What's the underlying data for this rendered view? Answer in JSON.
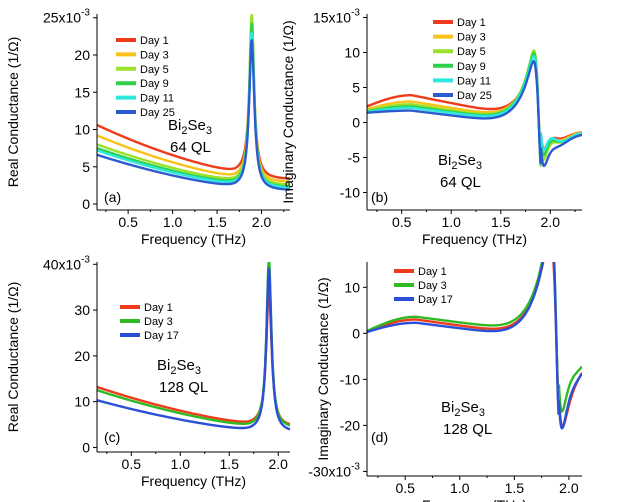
{
  "chart_data": [
    {
      "id": "a",
      "type": "line",
      "panel_label": "(a)",
      "xlabel": "Frequency (THz)",
      "ylabel": "Real Conductance (1/Ω)",
      "xlim": [
        0.15,
        2.32
      ],
      "ylim": [
        -0.8,
        25.5
      ],
      "multiplier": "x10",
      "multiplier_exp": "-3",
      "xticks": [
        "0.5",
        "1.0",
        "1.5",
        "2.0"
      ],
      "xtick_values": [
        0.5,
        1.0,
        1.5,
        2.0
      ],
      "ytick_labels": [
        "0",
        "5",
        "10",
        "15",
        "20",
        "25"
      ],
      "ytick_values": [
        0,
        5,
        10,
        15,
        20,
        25
      ],
      "top_ytick_uses_multiplier": true,
      "sample": "Bi",
      "sample_sub1": "2",
      "sample_mid": "Se",
      "sample_sub2": "3",
      "thickness": "64 QL",
      "model": {
        "kind": "real",
        "w0": 1.89
      },
      "series": [
        {
          "name": "Day 1",
          "color": "#ee3b1b",
          "base": 10.6,
          "mid": 4.2,
          "amp": 18.4,
          "gamma": 0.035,
          "drop": 0.9
        },
        {
          "name": "Day 3",
          "color": "#f8c21a",
          "base": 9.2,
          "mid": 3.5,
          "amp": 21.5,
          "gamma": 0.032,
          "drop": 0.6
        },
        {
          "name": "Day 5",
          "color": "#9ae22a",
          "base": 8.0,
          "mid": 3.0,
          "amp": 22.5,
          "gamma": 0.032,
          "drop": 0.5
        },
        {
          "name": "Day 9",
          "color": "#2fd14a",
          "base": 7.5,
          "mid": 2.7,
          "amp": 21.5,
          "gamma": 0.033,
          "drop": 0.5
        },
        {
          "name": "Day 11",
          "color": "#2ee8e0",
          "base": 7.2,
          "mid": 2.5,
          "amp": 20.5,
          "gamma": 0.034,
          "drop": 0.4
        },
        {
          "name": "Day 25",
          "color": "#2b5ccf",
          "base": 6.6,
          "mid": 2.2,
          "amp": 19.8,
          "gamma": 0.035,
          "drop": 0.4
        }
      ]
    },
    {
      "id": "b",
      "type": "line",
      "panel_label": "(b)",
      "xlabel": "Frequency (THz)",
      "ylabel": "Imaginary Conductance (1/Ω)",
      "xlim": [
        0.15,
        2.32
      ],
      "ylim": [
        -12.5,
        15.5
      ],
      "multiplier": "x10",
      "multiplier_exp": "-3",
      "xticks": [
        "0.5",
        "1.0",
        "1.5",
        "2.0"
      ],
      "xtick_values": [
        0.5,
        1.0,
        1.5,
        2.0
      ],
      "ytick_labels": [
        "-10",
        "-5",
        "0",
        "5",
        "10",
        "15"
      ],
      "ytick_values": [
        -10,
        -5,
        0,
        5,
        10,
        15
      ],
      "top_ytick_uses_multiplier": true,
      "sample": "Bi",
      "sample_sub1": "2",
      "sample_mid": "Se",
      "sample_sub2": "3",
      "thickness": "64 QL",
      "model": {
        "kind": "imag",
        "w0": 1.885
      },
      "series": [
        {
          "name": "Day 1",
          "color": "#ee3b1b",
          "start": 2.3,
          "peak": 3.9,
          "end": 0.8,
          "amp": 8.5,
          "w": 0.055,
          "tail": 4.4
        },
        {
          "name": "Day 3",
          "color": "#f8c21a",
          "start": 1.9,
          "peak": 3.0,
          "end": 0.5,
          "amp": 9.8,
          "w": 0.052,
          "tail": 5.0
        },
        {
          "name": "Day 5",
          "color": "#9ae22a",
          "start": 1.7,
          "peak": 2.6,
          "end": 0.3,
          "amp": 10.5,
          "w": 0.052,
          "tail": 5.2
        },
        {
          "name": "Day 9",
          "color": "#2fd14a",
          "start": 1.6,
          "peak": 2.3,
          "end": 0.2,
          "amp": 10.2,
          "w": 0.053,
          "tail": 5.6
        },
        {
          "name": "Day 11",
          "color": "#2ee8e0",
          "start": 1.5,
          "peak": 2.1,
          "end": 0.1,
          "amp": 9.8,
          "w": 0.054,
          "tail": 6.0
        },
        {
          "name": "Day 25",
          "color": "#2b5ccf",
          "start": 1.4,
          "peak": 1.7,
          "end": -0.2,
          "amp": 9.4,
          "w": 0.055,
          "tail": 3.6
        }
      ]
    },
    {
      "id": "c",
      "type": "line",
      "panel_label": "(c)",
      "xlabel": "Frequency (THz)",
      "ylabel": "Real Conductance (1/Ω)",
      "xlim": [
        0.15,
        2.12
      ],
      "ylim": [
        -1.0,
        40.5
      ],
      "multiplier": "x10",
      "multiplier_exp": "-3",
      "xticks": [
        "0.5",
        "1.0",
        "1.5",
        "2.0"
      ],
      "xtick_values": [
        0.5,
        1.0,
        1.5,
        2.0
      ],
      "ytick_labels": [
        "0",
        "10",
        "20",
        "30",
        "40"
      ],
      "ytick_values": [
        0,
        10,
        20,
        30,
        40
      ],
      "top_ytick_uses_multiplier": true,
      "sample": "Bi",
      "sample_sub1": "2",
      "sample_mid": "Se",
      "sample_sub2": "3",
      "thickness": "128 QL",
      "model": {
        "kind": "real",
        "w0": 1.905
      },
      "series": [
        {
          "name": "Day 1",
          "color": "#ee3b1b",
          "base": 13.2,
          "mid": 5.0,
          "amp": 29.5,
          "gamma": 0.032,
          "drop": 0.6
        },
        {
          "name": "Day 3",
          "color": "#2fba24",
          "base": 12.5,
          "mid": 4.5,
          "amp": 36.5,
          "gamma": 0.03,
          "drop": 0.4
        },
        {
          "name": "Day 17",
          "color": "#2b4fd8",
          "base": 10.3,
          "mid": 3.6,
          "amp": 35.5,
          "gamma": 0.031,
          "drop": 0.4
        }
      ]
    },
    {
      "id": "d",
      "type": "line",
      "panel_label": "(d)",
      "xlabel": "Frequency (THz)",
      "ylabel": "Imaginary Conductance (1/Ω)",
      "xlim": [
        0.15,
        2.12
      ],
      "ylim": [
        -31.0,
        15.5
      ],
      "multiplier": "x10",
      "multiplier_exp": "-3",
      "xticks": [
        "0.5",
        "1.0",
        "1.5",
        "2.0"
      ],
      "xtick_values": [
        0.5,
        1.0,
        1.5,
        2.0
      ],
      "ytick_labels": [
        "-30",
        "-20",
        "-10",
        "0",
        "10"
      ],
      "ytick_values": [
        -30,
        -20,
        -10,
        0,
        10
      ],
      "bottom_ytick_uses_multiplier": true,
      "sample": "Bi",
      "sample_sub1": "2",
      "sample_mid": "Se",
      "sample_sub2": "3",
      "thickness": "128 QL",
      "model": {
        "kind": "imag",
        "w0": 1.885
      },
      "series": [
        {
          "name": "Day 1",
          "color": "#ee3b1b",
          "start": 0.4,
          "peak": 3.0,
          "end": -0.6,
          "amp": 23.0,
          "w": 0.06,
          "tail": 3.5
        },
        {
          "name": "Day 3",
          "color": "#2fba24",
          "start": 0.5,
          "peak": 3.6,
          "end": 0.2,
          "amp": 25.0,
          "w": 0.055,
          "tail": 8.0
        },
        {
          "name": "Day 17",
          "color": "#2b4fd8",
          "start": 0.3,
          "peak": 2.3,
          "end": -1.0,
          "amp": 25.5,
          "w": 0.055,
          "tail": 6.0
        }
      ]
    }
  ]
}
